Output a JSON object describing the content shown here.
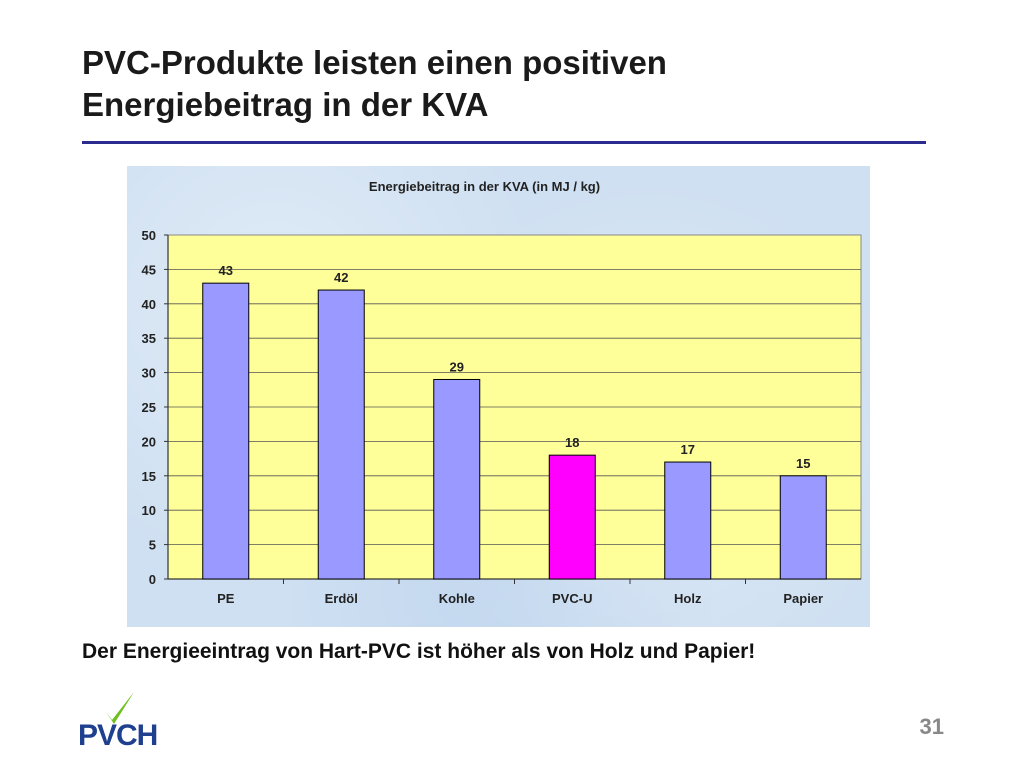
{
  "slide": {
    "title_line1": "PVC-Produkte leisten einen positiven",
    "title_line2": "Energiebeitrag in der KVA",
    "caption": "Der Energieeintrag von Hart-PVC ist höher als von Holz und Papier!",
    "page_number": "31",
    "logo_text": "PVCH"
  },
  "colors": {
    "bar_default": "#9999ff",
    "bar_highlight": "#ff00ff",
    "plot_background": "#ffff99",
    "title_rule": "#2b2b8f",
    "logo": "#1f3f8f",
    "logo_check": "#6fbf1f"
  },
  "chart_data": {
    "type": "bar",
    "title": "Energiebeitrag  in der KVA (in MJ / kg)",
    "categories": [
      "PE",
      "Erdöl",
      "Kohle",
      "PVC-U",
      "Holz",
      "Papier"
    ],
    "values": [
      43,
      42,
      29,
      18,
      17,
      15
    ],
    "highlight_category": "PVC-U",
    "ylim": [
      0,
      50
    ],
    "yticks": [
      0,
      5,
      10,
      15,
      20,
      25,
      30,
      35,
      40,
      45,
      50
    ],
    "grid": true,
    "legend": "none",
    "data_labels": true
  }
}
